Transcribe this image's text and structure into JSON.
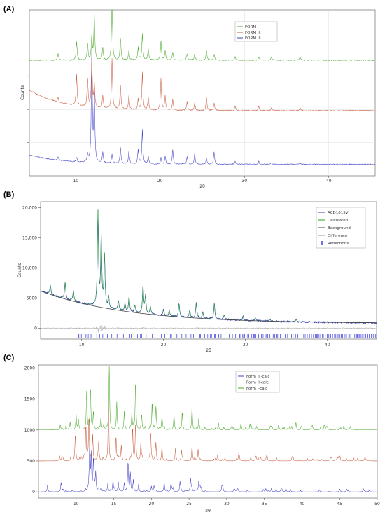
{
  "chart_data": [
    {
      "panel": "(A)",
      "type": "line",
      "xlabel": "2θ",
      "ylabel": "Counts",
      "xlim": [
        4.5,
        45.5
      ],
      "xticks": [
        10,
        20,
        30,
        40
      ],
      "grid": true,
      "legend_position": "top-right",
      "peaks": [
        7.9,
        10.1,
        11.4,
        11.9,
        12.2,
        13.2,
        14.3,
        15.3,
        16.3,
        17.4,
        17.9,
        18.6,
        20.1,
        20.6,
        21.5,
        23.2,
        24.1,
        25.5,
        26.4,
        28.9,
        31.7,
        33.2,
        36.6
      ],
      "series": [
        {
          "name": "FORM III",
          "color": "#4040c8",
          "offset": 0.06,
          "curve": 0.06,
          "heights": [
            0.02,
            0.03,
            0.05,
            0.7,
            0.45,
            0.07,
            0.06,
            0.1,
            0.08,
            0.09,
            0.22,
            0.05,
            0.04,
            0.05,
            0.09,
            0.05,
            0.07,
            0.04,
            0.08,
            0.02,
            0.02,
            0.01,
            0.01
          ]
        },
        {
          "name": "FORM II",
          "color": "#c85a3c",
          "offset": 0.4,
          "curve": 0.13,
          "heights": [
            0.03,
            0.2,
            0.18,
            0.3,
            0.15,
            0.08,
            0.32,
            0.15,
            0.09,
            0.07,
            0.24,
            0.08,
            0.2,
            0.09,
            0.07,
            0.06,
            0.05,
            0.08,
            0.05,
            0.03,
            0.03,
            0.02,
            0.02
          ]
        },
        {
          "name": "FORM I",
          "color": "#4aa82a",
          "offset": 0.72,
          "curve": 0.0,
          "heights": [
            0.04,
            0.12,
            0.1,
            0.15,
            0.28,
            0.08,
            0.38,
            0.14,
            0.06,
            0.08,
            0.17,
            0.07,
            0.12,
            0.06,
            0.05,
            0.04,
            0.04,
            0.06,
            0.04,
            0.02,
            0.02,
            0.02,
            0.02
          ]
        }
      ]
    },
    {
      "panel": "(B)",
      "type": "line",
      "xlabel": "2θ",
      "ylabel": "Counts",
      "xlim": [
        5,
        46
      ],
      "ylim": [
        -1800,
        21000
      ],
      "xticks": [
        10,
        20,
        30,
        40
      ],
      "yticks": [
        0,
        5000,
        10000,
        15000,
        20000
      ],
      "ytick_labels": [
        "0",
        "5000",
        "10,000",
        "15,000",
        "20,000"
      ],
      "legend_position": "top-right",
      "background_start": 6200,
      "background_end": 800,
      "peaks": [
        6.2,
        8.0,
        9.0,
        12.0,
        12.4,
        12.8,
        13.3,
        14.5,
        15.3,
        15.8,
        16.5,
        17.5,
        17.8,
        18.4,
        20.0,
        20.7,
        21.9,
        23.2,
        24.0,
        24.8,
        26.2,
        27.4,
        29.7,
        31.2,
        33.0,
        36.2
      ],
      "peak_heights": [
        1500,
        2800,
        1800,
        15500,
        11500,
        8500,
        2000,
        1500,
        1200,
        2500,
        1200,
        4500,
        2800,
        1300,
        1000,
        900,
        2200,
        1300,
        2500,
        1000,
        2600,
        800,
        700,
        500,
        400,
        350
      ],
      "series": [
        {
          "name": "ACD1015V",
          "color": "#3a3ac8"
        },
        {
          "name": "Calculated",
          "color": "#22aa22"
        },
        {
          "name": "Background",
          "color": "#444444"
        },
        {
          "name": "Difference",
          "color": "#999999"
        },
        {
          "name": "Reflections",
          "color": "#1515d8"
        }
      ]
    },
    {
      "panel": "(C)",
      "type": "line",
      "xlabel": "2θ",
      "xlim": [
        5,
        50
      ],
      "ylim": [
        -100,
        2050
      ],
      "xticks": [
        10,
        15,
        20,
        25,
        30,
        35,
        40,
        45,
        50
      ],
      "yticks": [
        0,
        500,
        1000,
        1500,
        2000
      ],
      "legend_position": "top-right",
      "series": [
        {
          "name": "Form III-calc",
          "color": "#4040c8",
          "offset": 0,
          "peaks": [
            6.2,
            8.0,
            11.8,
            12.0,
            12.3,
            12.6,
            14.2,
            14.9,
            15.6,
            16.4,
            16.9,
            17.2,
            17.6,
            18.3,
            20.0,
            21.7,
            22.6,
            23.8,
            25.2,
            26.3,
            29.4,
            31.5
          ],
          "heights": [
            110,
            140,
            700,
            580,
            520,
            300,
            130,
            180,
            160,
            140,
            440,
            300,
            180,
            110,
            90,
            150,
            120,
            160,
            210,
            180,
            60,
            40
          ]
        },
        {
          "name": "Form II-calc",
          "color": "#c85a3c",
          "offset": 500,
          "peaks": [
            7.8,
            9.9,
            11.3,
            11.7,
            12.2,
            13.0,
            14.3,
            15.3,
            16.0,
            17.5,
            17.9,
            18.6,
            19.9,
            20.6,
            21.4,
            23.2,
            24.0,
            25.4,
            26.2,
            28.8,
            31.6,
            33.2
          ],
          "heights": [
            80,
            420,
            580,
            720,
            420,
            300,
            1000,
            400,
            250,
            550,
            620,
            300,
            480,
            280,
            230,
            200,
            170,
            250,
            160,
            100,
            90,
            60
          ]
        },
        {
          "name": "Form I-calc",
          "color": "#4aa82a",
          "offset": 1000,
          "peaks": [
            7.9,
            10.0,
            10.3,
            11.4,
            11.9,
            12.3,
            13.3,
            14.4,
            15.4,
            16.4,
            17.4,
            17.9,
            18.7,
            20.1,
            20.6,
            21.4,
            23.0,
            24.1,
            25.4,
            26.3,
            28.9,
            31.9,
            33.1,
            36.9
          ],
          "heights": [
            80,
            250,
            180,
            550,
            700,
            300,
            200,
            1000,
            450,
            300,
            260,
            800,
            250,
            450,
            320,
            200,
            250,
            300,
            380,
            200,
            120,
            110,
            100,
            90
          ]
        }
      ]
    }
  ]
}
